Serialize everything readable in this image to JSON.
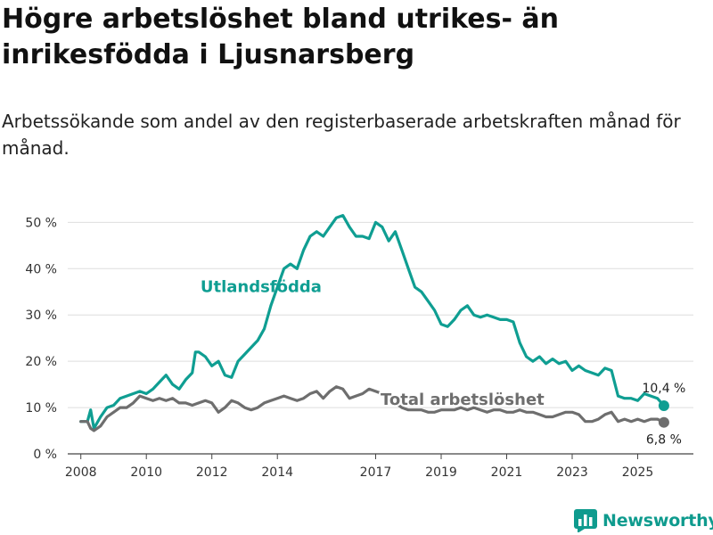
{
  "header": {
    "title": "Högre arbetslöshet bland utrikes- än inrikesfödda i Ljusnarsberg",
    "subtitle": "Arbetssökande som andel av den registerbaserade arbetskraften månad för månad."
  },
  "brand": {
    "name": "Newsworthy",
    "icon": "bar-chart-logo-icon",
    "color": "#0f9b8e"
  },
  "chart_data": {
    "type": "line",
    "title": "Högre arbetslöshet bland utrikes- än inrikesfödda i Ljusnarsberg",
    "subtitle": "Arbetssökande som andel av den registerbaserade arbetskraften månad för månad.",
    "xlabel": "",
    "ylabel": "",
    "xlim": [
      2007.6,
      2026.7
    ],
    "ylim": [
      0,
      52
    ],
    "yticks": [
      0,
      10,
      20,
      30,
      40,
      50
    ],
    "ytick_labels": [
      "0 %",
      "10 %",
      "20 %",
      "30 %",
      "40 %",
      "50 %"
    ],
    "xticks": [
      2008,
      2010,
      2012,
      2014,
      2017,
      2019,
      2021,
      2023,
      2025
    ],
    "xtick_labels": [
      "2008",
      "2010",
      "2012",
      "2014",
      "2017",
      "2019",
      "2021",
      "2023",
      "2025"
    ],
    "grid": true,
    "series": [
      {
        "name": "Utlandsfödda",
        "color": "#0f9e92",
        "label_position": "middle-left",
        "end_label": "10,4 %",
        "x": [
          2008.0,
          2008.2,
          2008.3,
          2008.4,
          2008.6,
          2008.8,
          2009.0,
          2009.2,
          2009.4,
          2009.6,
          2009.8,
          2010.0,
          2010.2,
          2010.4,
          2010.6,
          2010.8,
          2011.0,
          2011.2,
          2011.4,
          2011.5,
          2011.6,
          2011.8,
          2012.0,
          2012.2,
          2012.4,
          2012.6,
          2012.8,
          2013.0,
          2013.2,
          2013.4,
          2013.6,
          2013.8,
          2014.0,
          2014.2,
          2014.4,
          2014.6,
          2014.8,
          2015.0,
          2015.2,
          2015.4,
          2015.6,
          2015.8,
          2016.0,
          2016.2,
          2016.4,
          2016.6,
          2016.8,
          2017.0,
          2017.2,
          2017.4,
          2017.6,
          2017.8,
          2018.0,
          2018.2,
          2018.4,
          2018.6,
          2018.8,
          2019.0,
          2019.2,
          2019.4,
          2019.6,
          2019.8,
          2020.0,
          2020.2,
          2020.4,
          2020.6,
          2020.8,
          2021.0,
          2021.2,
          2021.4,
          2021.6,
          2021.8,
          2022.0,
          2022.2,
          2022.4,
          2022.6,
          2022.8,
          2023.0,
          2023.2,
          2023.4,
          2023.6,
          2023.8,
          2024.0,
          2024.2,
          2024.4,
          2024.6,
          2024.8,
          2025.0,
          2025.2,
          2025.4,
          2025.6,
          2025.8
        ],
        "values": [
          7,
          7,
          9.5,
          5.5,
          8,
          10,
          10.5,
          12,
          12.5,
          13,
          13.5,
          13,
          14,
          15.5,
          17,
          15,
          14,
          16,
          17.5,
          22,
          22,
          21,
          19,
          20,
          17,
          16.5,
          20,
          21.5,
          23,
          24.5,
          27,
          32,
          36,
          40,
          41,
          40,
          44,
          47,
          48,
          47,
          49,
          51,
          51.5,
          49,
          47,
          47,
          46.5,
          50,
          49,
          46,
          48,
          44,
          40,
          36,
          35,
          33,
          31,
          28,
          27.5,
          29,
          31,
          32,
          30,
          29.5,
          30,
          29.5,
          29,
          29,
          28.5,
          24,
          21,
          20,
          21,
          19.5,
          20.5,
          19.5,
          20,
          18,
          19,
          18,
          17.5,
          17,
          18.5,
          18,
          12.5,
          12,
          12,
          11.5,
          13,
          12.5,
          12,
          10.4
        ]
      },
      {
        "name": "Total arbetslöshet",
        "color": "#6e6e6e",
        "label_position": "middle-right",
        "end_label": "6,8 %",
        "x": [
          2008.0,
          2008.2,
          2008.3,
          2008.4,
          2008.6,
          2008.8,
          2009.0,
          2009.2,
          2009.4,
          2009.6,
          2009.8,
          2010.0,
          2010.2,
          2010.4,
          2010.6,
          2010.8,
          2011.0,
          2011.2,
          2011.4,
          2011.6,
          2011.8,
          2012.0,
          2012.2,
          2012.4,
          2012.6,
          2012.8,
          2013.0,
          2013.2,
          2013.4,
          2013.6,
          2013.8,
          2014.0,
          2014.2,
          2014.4,
          2014.6,
          2014.8,
          2015.0,
          2015.2,
          2015.4,
          2015.6,
          2015.8,
          2016.0,
          2016.2,
          2016.4,
          2016.6,
          2016.8,
          2017.0,
          2017.2,
          2017.4,
          2017.6,
          2017.8,
          2018.0,
          2018.2,
          2018.4,
          2018.6,
          2018.8,
          2019.0,
          2019.2,
          2019.4,
          2019.6,
          2019.8,
          2020.0,
          2020.2,
          2020.4,
          2020.6,
          2020.8,
          2021.0,
          2021.2,
          2021.4,
          2021.6,
          2021.8,
          2022.0,
          2022.2,
          2022.4,
          2022.6,
          2022.8,
          2023.0,
          2023.2,
          2023.4,
          2023.6,
          2023.8,
          2024.0,
          2024.2,
          2024.4,
          2024.6,
          2024.8,
          2025.0,
          2025.2,
          2025.4,
          2025.6,
          2025.8
        ],
        "values": [
          7,
          7,
          5.5,
          5,
          6,
          8,
          9,
          10,
          10,
          11,
          12.5,
          12,
          11.5,
          12,
          11.5,
          12,
          11,
          11,
          10.5,
          11,
          11.5,
          11,
          9,
          10,
          11.5,
          11,
          10,
          9.5,
          10,
          11,
          11.5,
          12,
          12.5,
          12,
          11.5,
          12,
          13,
          13.5,
          12,
          13.5,
          14.5,
          14,
          12,
          12.5,
          13,
          14,
          13.5,
          13,
          12,
          11,
          10,
          9.5,
          9.5,
          9.5,
          9,
          9,
          9.5,
          9.5,
          9.5,
          10,
          9.5,
          10,
          9.5,
          9,
          9.5,
          9.5,
          9,
          9,
          9.5,
          9,
          9,
          8.5,
          8,
          8,
          8.5,
          9,
          9,
          8.5,
          7,
          7,
          7.5,
          8.5,
          9,
          7,
          7.5,
          7,
          7.5,
          7,
          7.5,
          7.5,
          6.8
        ]
      }
    ]
  }
}
